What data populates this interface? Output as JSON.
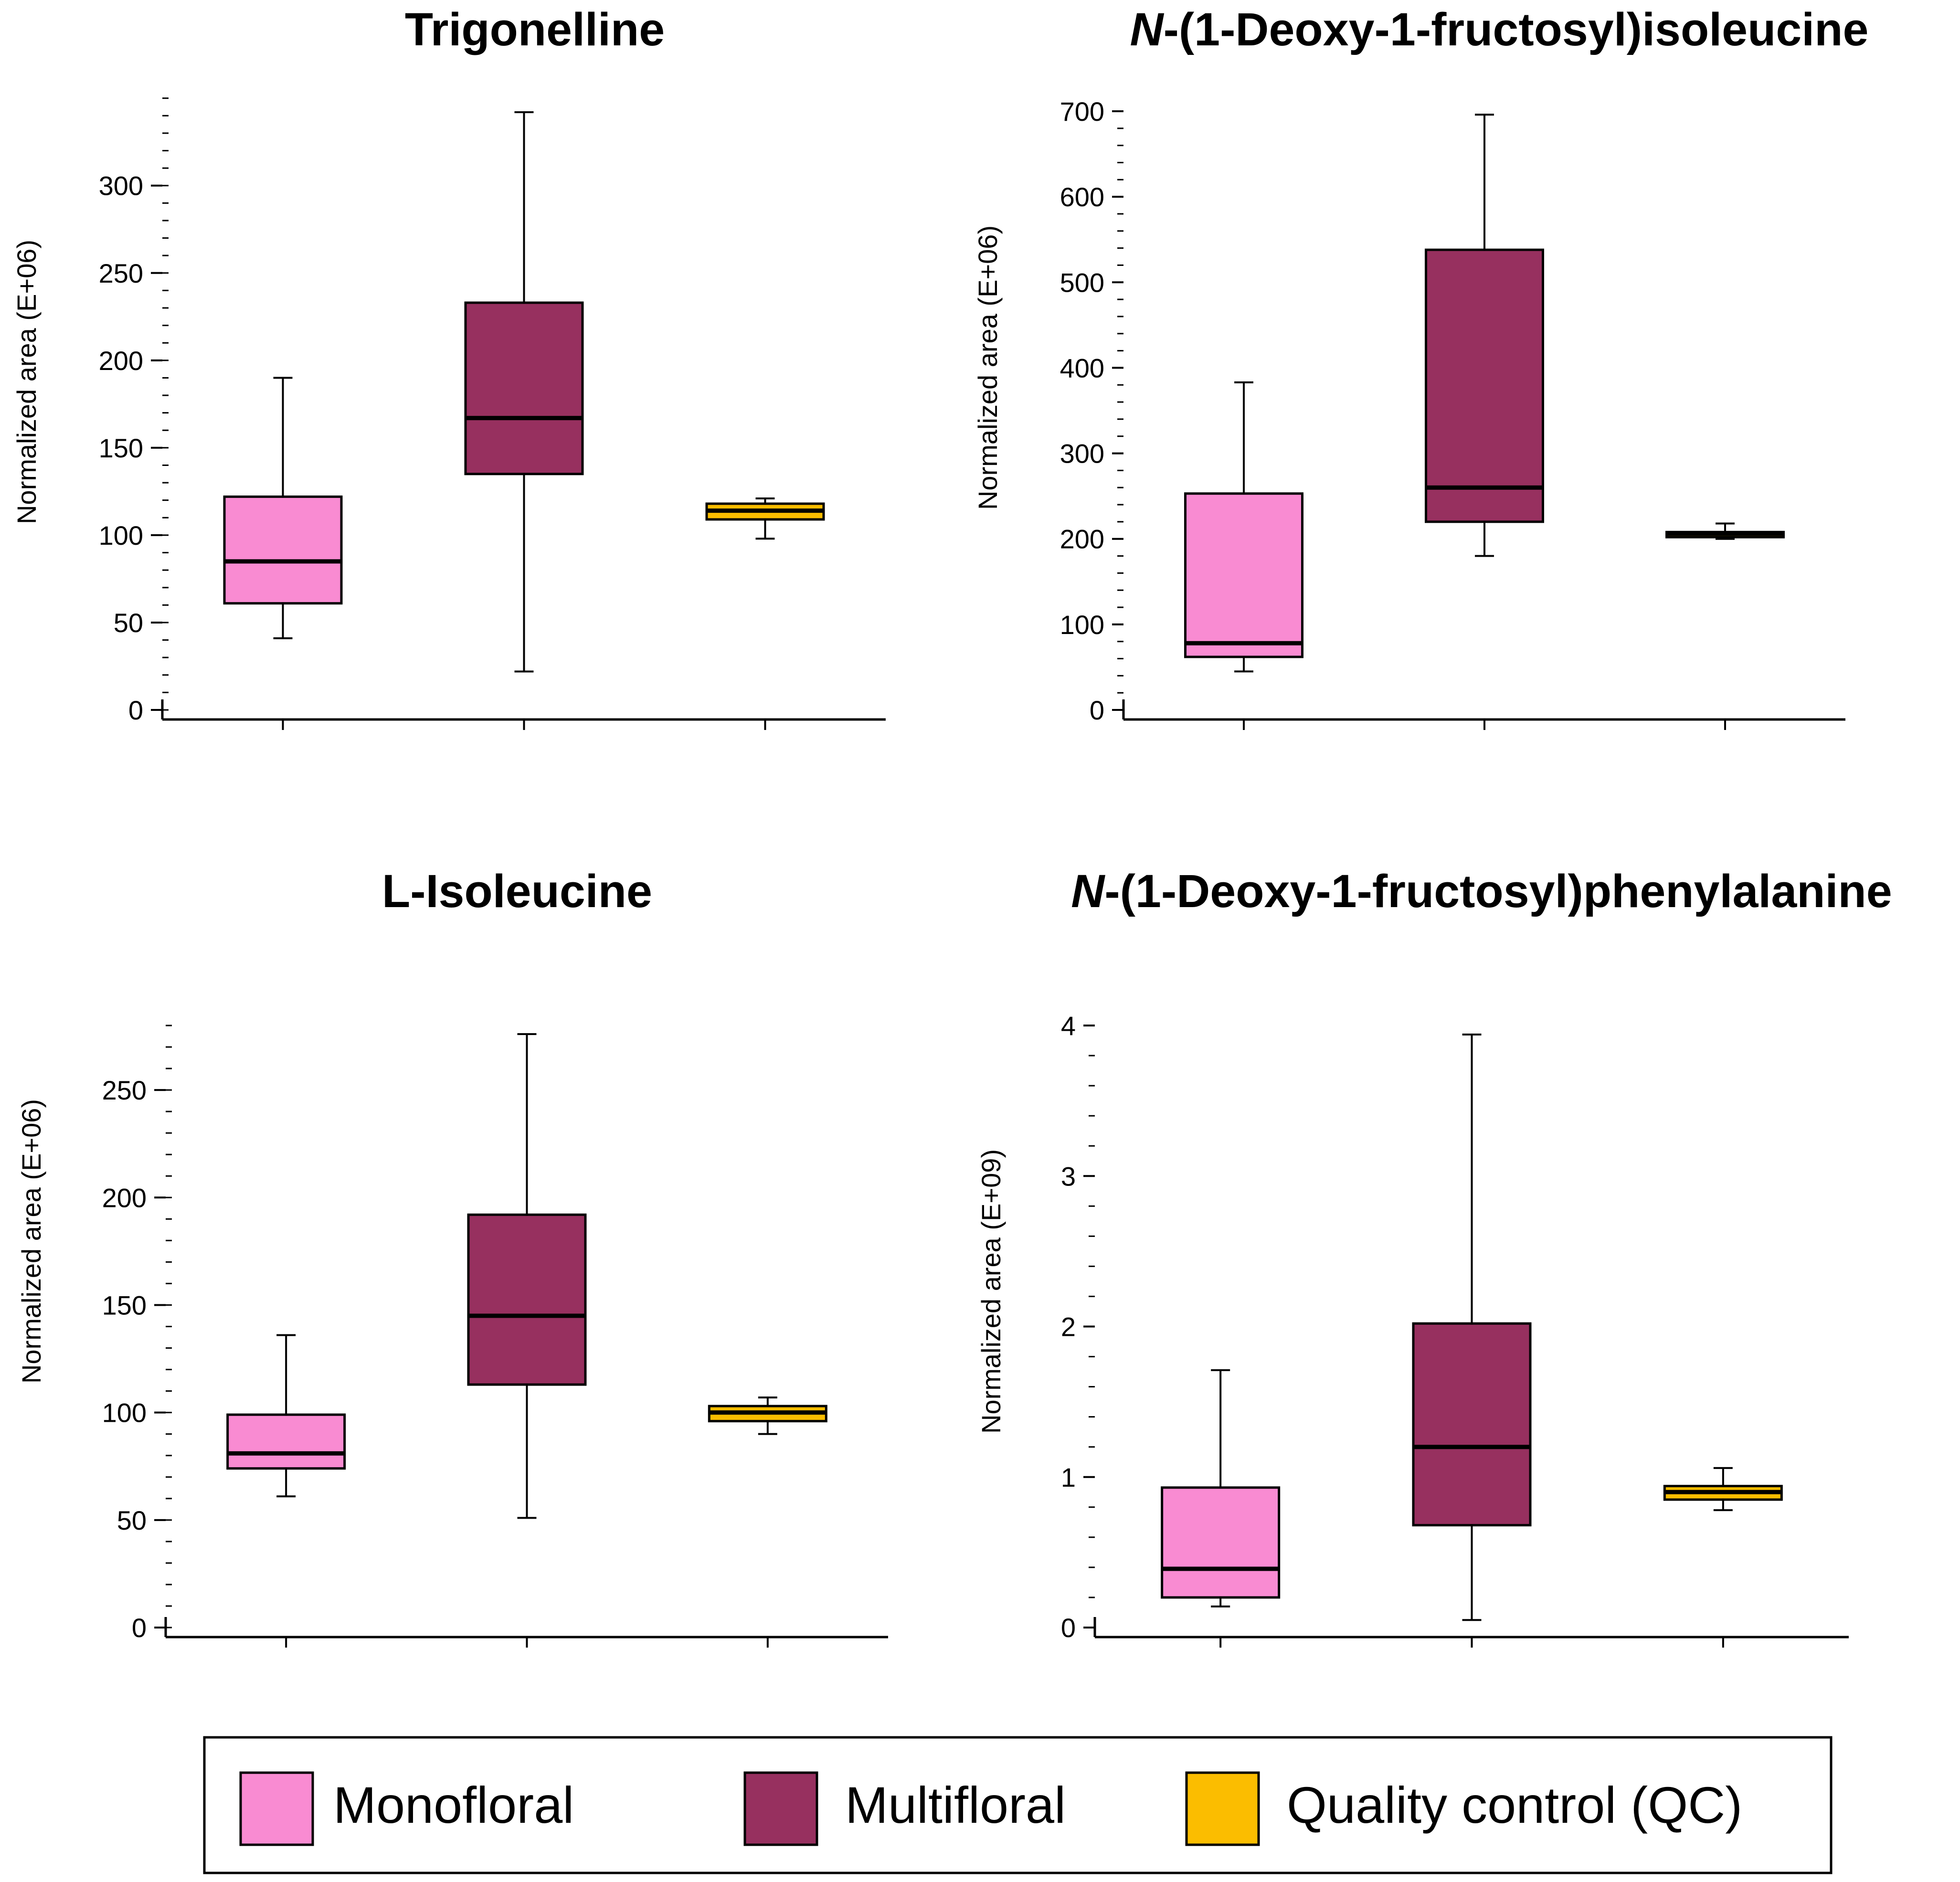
{
  "chart_data": [
    {
      "type": "box",
      "title": "Trigonelline",
      "title_prefix": "",
      "ylabel": "Normalized area (E+06)",
      "ylim": [
        0,
        345
      ],
      "yticks": [
        0,
        50,
        100,
        150,
        200,
        250,
        300
      ],
      "minor_step": 10,
      "categories": [
        "Monofloral",
        "Multifloral",
        "Quality control (QC)"
      ],
      "boxes": [
        {
          "group": "Monofloral",
          "min": 41,
          "q1": 61,
          "median": 85,
          "q3": 122,
          "max": 190
        },
        {
          "group": "Multifloral",
          "min": 22,
          "q1": 135,
          "median": 167,
          "q3": 233,
          "max": 342
        },
        {
          "group": "Quality control (QC)",
          "min": 98,
          "q1": 109,
          "median": 114,
          "q3": 118,
          "max": 121
        }
      ]
    },
    {
      "type": "box",
      "title": "-(1-Deoxy-1-fructosyl)isoleucine",
      "title_prefix": "N",
      "ylabel": "Normalized area (E+06)",
      "ylim": [
        0,
        700
      ],
      "yticks": [
        0,
        100,
        200,
        300,
        400,
        500,
        600,
        700
      ],
      "minor_step": 20,
      "categories": [
        "Monofloral",
        "Multifloral",
        "Quality control (QC)"
      ],
      "boxes": [
        {
          "group": "Monofloral",
          "min": 45,
          "q1": 62,
          "median": 78,
          "q3": 253,
          "max": 383
        },
        {
          "group": "Multifloral",
          "min": 180,
          "q1": 220,
          "median": 260,
          "q3": 538,
          "max": 696
        },
        {
          "group": "Quality control (QC)",
          "min": 200,
          "q1": 202,
          "median": 206,
          "q3": 208,
          "max": 218
        }
      ]
    },
    {
      "type": "box",
      "title": "L-Isoleucine",
      "title_prefix": "",
      "ylabel": "Normalized area (E+06)",
      "ylim": [
        0,
        280
      ],
      "yticks": [
        0,
        50,
        100,
        150,
        200,
        250
      ],
      "minor_step": 10,
      "categories": [
        "Monofloral",
        "Multifloral",
        "Quality control (QC)"
      ],
      "boxes": [
        {
          "group": "Monofloral",
          "min": 61,
          "q1": 74,
          "median": 81,
          "q3": 99,
          "max": 136
        },
        {
          "group": "Multifloral",
          "min": 51,
          "q1": 113,
          "median": 145,
          "q3": 192,
          "max": 276
        },
        {
          "group": "Quality control (QC)",
          "min": 90,
          "q1": 96,
          "median": 100,
          "q3": 103,
          "max": 107
        }
      ]
    },
    {
      "type": "box",
      "title": "-(1-Deoxy-1-fructosyl)phenylalanine",
      "title_prefix": "N",
      "ylabel": "Normalized area (E+09)",
      "ylim": [
        0,
        4
      ],
      "yticks": [
        0,
        1,
        2,
        3,
        4
      ],
      "minor_step": 0.2,
      "categories": [
        "Monofloral",
        "Multifloral",
        "Quality control (QC)"
      ],
      "boxes": [
        {
          "group": "Monofloral",
          "min": 0.14,
          "q1": 0.2,
          "median": 0.39,
          "q3": 0.93,
          "max": 1.71
        },
        {
          "group": "Multifloral",
          "min": 0.05,
          "q1": 0.68,
          "median": 1.2,
          "q3": 2.02,
          "max": 3.94
        },
        {
          "group": "Quality control (QC)",
          "min": 0.78,
          "q1": 0.85,
          "median": 0.9,
          "q3": 0.94,
          "max": 1.06
        }
      ]
    }
  ],
  "legend": {
    "items": [
      {
        "label": "Monofloral",
        "color": "#f98bd2"
      },
      {
        "label": "Multifloral",
        "color": "#97305f"
      },
      {
        "label": "Quality control (QC)",
        "color": "#fbbd00"
      }
    ]
  }
}
